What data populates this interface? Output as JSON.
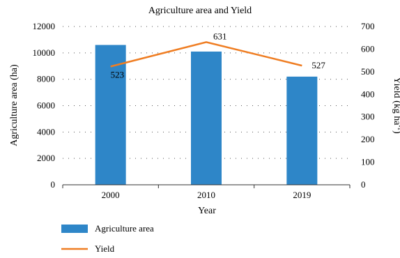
{
  "chart_data": {
    "type": "bar",
    "title": "Agriculture area and Yield",
    "xlabel": "Year",
    "categories": [
      "2000",
      "2010",
      "2019"
    ],
    "y_left": {
      "label": "Agriculture area (ha)",
      "range": [
        0,
        12000
      ],
      "ticks": [
        "0",
        "2000",
        "4000",
        "6000",
        "8000",
        "10000",
        "12000"
      ]
    },
    "y_right": {
      "label_main": "Yield (kg ha",
      "label_sup": "-1",
      "label_close": ")",
      "range": [
        0,
        700
      ],
      "ticks": [
        "0",
        "100",
        "200",
        "300",
        "400",
        "500",
        "600",
        "700"
      ]
    },
    "series": [
      {
        "name": "Agriculture area",
        "type": "bar",
        "axis": "left",
        "values": [
          10600,
          10100,
          8200
        ],
        "color": "#2e86c8"
      },
      {
        "name": "Yield",
        "type": "line",
        "axis": "right",
        "values": [
          523,
          631,
          527
        ],
        "labels": [
          "523",
          "631",
          "527"
        ],
        "color": "#ef7d22"
      }
    ],
    "grid": true,
    "grid_style": "dotted horizontal",
    "legend_position": "bottom-left"
  }
}
